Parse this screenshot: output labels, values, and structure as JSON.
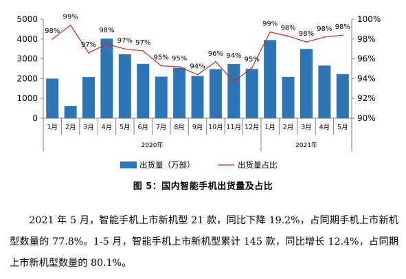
{
  "chart_data": {
    "type": "bar",
    "categories": [
      "1月",
      "2月",
      "3月",
      "4月",
      "5月",
      "6月",
      "7月",
      "8月",
      "9月",
      "10月",
      "11月",
      "12月",
      "1月",
      "2月",
      "3月",
      "4月",
      "5月"
    ],
    "groups": [
      {
        "label": "2020年",
        "start": 0,
        "end": 11
      },
      {
        "label": "2021年",
        "start": 12,
        "end": 16
      }
    ],
    "series": [
      {
        "name": "出货量（万部）",
        "kind": "bar",
        "axis": "left",
        "color": "#2e75b6",
        "values": [
          2000,
          620,
          2080,
          4020,
          3230,
          2750,
          2100,
          2550,
          2130,
          2480,
          2740,
          2490,
          3950,
          2090,
          3500,
          2660,
          2230
        ]
      },
      {
        "name": "出货量占比",
        "kind": "line",
        "axis": "right",
        "color": "#e02020",
        "values": [
          98.0,
          99.4,
          96.6,
          97.5,
          97.0,
          96.8,
          95.3,
          95.2,
          94.4,
          95.7,
          93.7,
          95.1,
          98.7,
          98.3,
          97.7,
          98.2,
          98.4
        ],
        "labels": [
          "98%",
          "99%",
          "97%",
          "98%",
          "97%",
          "97%",
          "95%",
          "95%",
          "94%",
          "96%",
          "94%",
          "95%",
          "99%",
          "98%",
          "98%",
          "98%",
          "98%"
        ]
      }
    ],
    "y_left": {
      "ylim": [
        0,
        5000
      ],
      "ticks": [
        "0",
        "1000",
        "2000",
        "3000",
        "4000",
        "5000"
      ]
    },
    "y_right": {
      "ylim": [
        90,
        100
      ],
      "ticks": [
        "90%",
        "92%",
        "94%",
        "96%",
        "98%",
        "100%"
      ]
    },
    "legend_position": "bottom",
    "grid": false
  },
  "caption": "图 5：国内智能手机出货量及占比",
  "paragraph": "2021 年 5 月，智能手机上市新机型 21 款，同比下降 19.2%，占同期手机上市新机型数量的 77.8%。1-5 月，智能手机上市新机型累计 145 款，同比增长 12.4%，占同期上市新机型数量的 80.1%。"
}
